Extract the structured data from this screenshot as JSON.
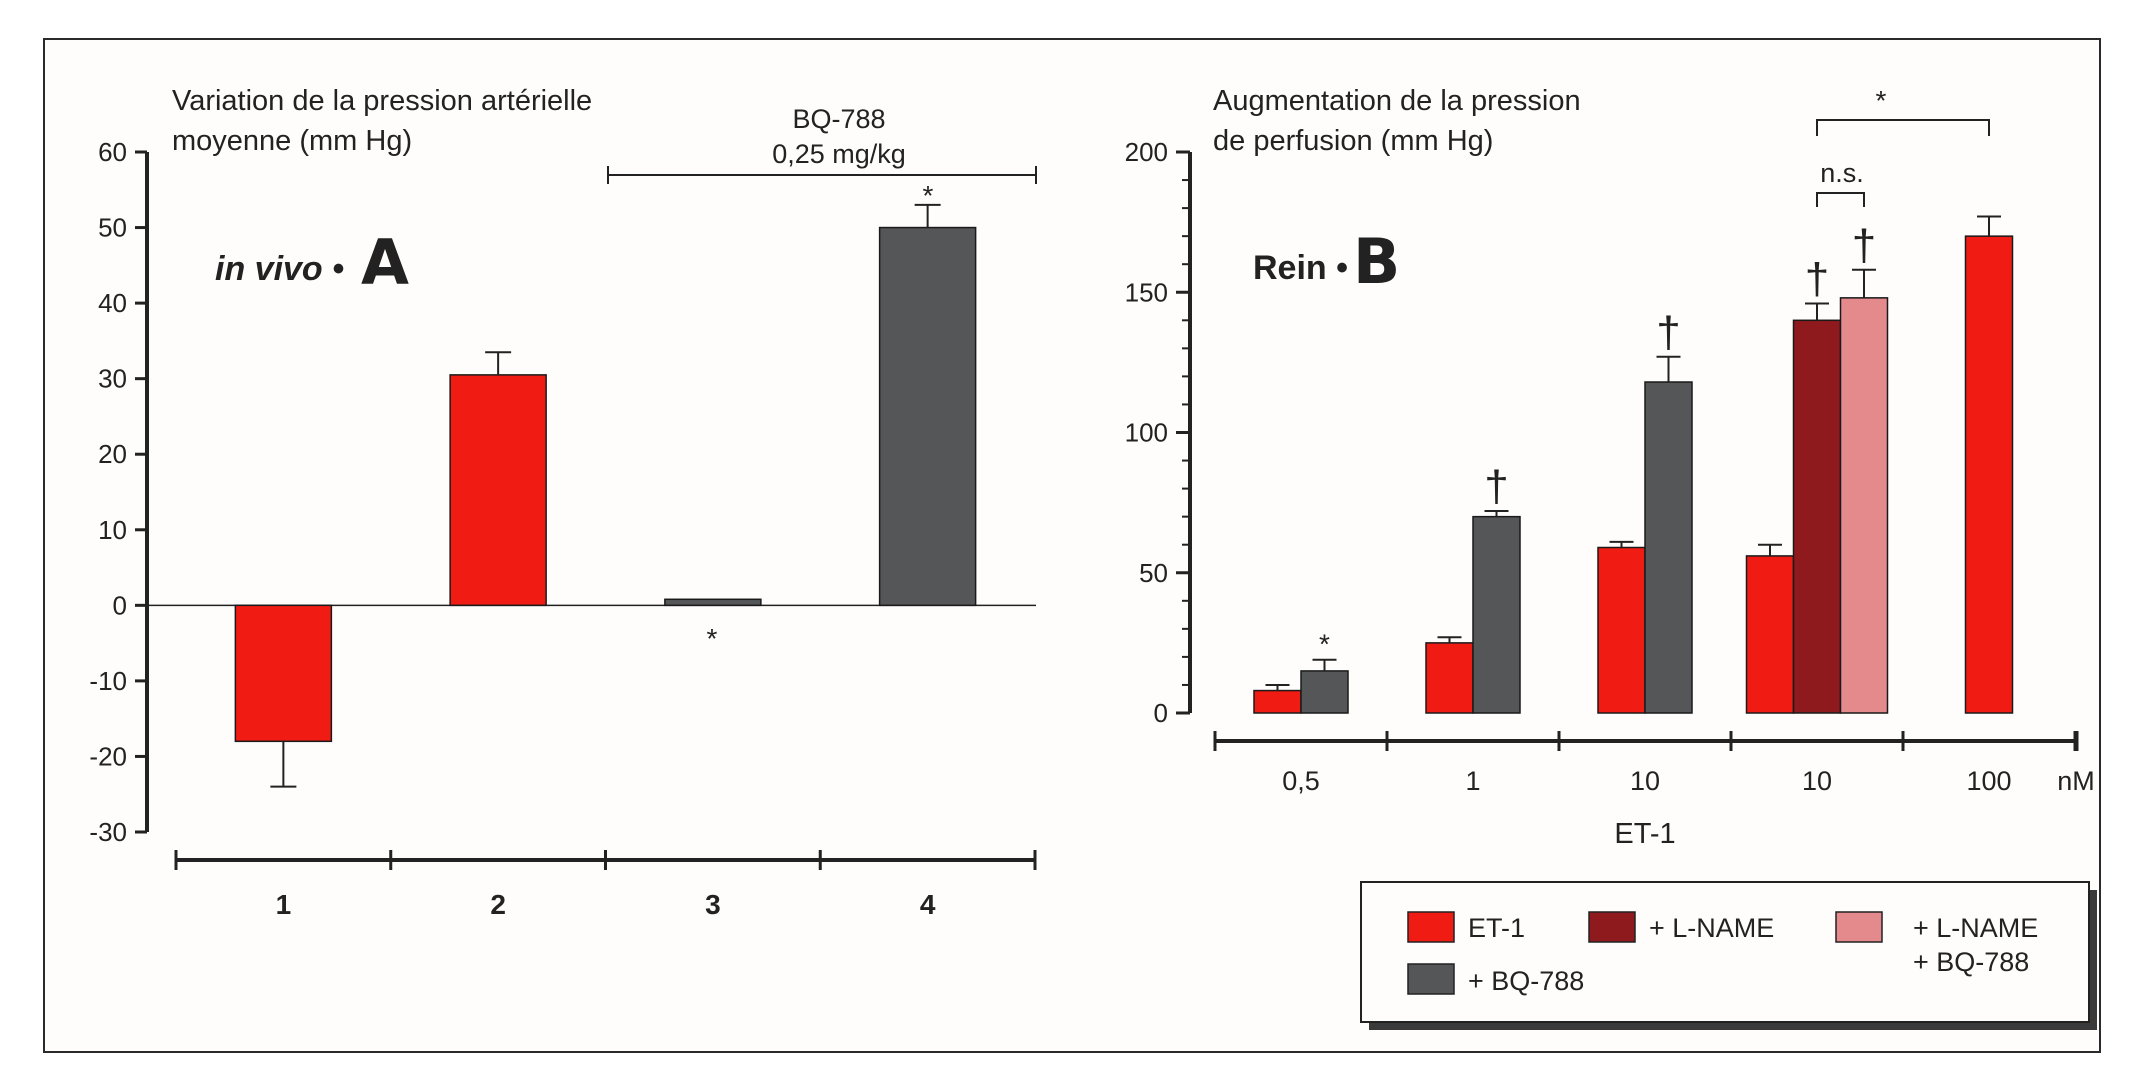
{
  "colors": {
    "red": "#f01c14",
    "dark_red": "#8e1a1e",
    "pink": "#e58a8c",
    "gray": "#555658",
    "ink": "#222222"
  },
  "chart_data": [
    {
      "type": "bar",
      "panel": "A",
      "title": "Variation de la pression artérielle moyenne (mm Hg)",
      "title_lines": [
        "Variation de la pression artérielle",
        "moyenne (mm Hg)"
      ],
      "panel_label_italic": "in vivo •",
      "panel_letter": "A",
      "ylim": [
        -30,
        60
      ],
      "yticks": [
        "60",
        "50",
        "40",
        "30",
        "20",
        "10",
        "0",
        "-10",
        "-20",
        "-30"
      ],
      "ytick_values": [
        60,
        50,
        40,
        30,
        20,
        10,
        0,
        -10,
        -20,
        -30
      ],
      "categories": [
        "1",
        "2",
        "3",
        "4"
      ],
      "bars": [
        {
          "category": "1",
          "value": -18,
          "error": 6,
          "color": "red"
        },
        {
          "category": "2",
          "value": 30.5,
          "error": 3,
          "color": "red"
        },
        {
          "category": "3",
          "value": 0.8,
          "error": 0,
          "color": "gray"
        },
        {
          "category": "4",
          "value": 50,
          "error": 3,
          "color": "gray"
        }
      ],
      "annotations": {
        "bq_line1": "BQ-788",
        "bq_line2": "0,25 mg/kg",
        "star_bar3": "*",
        "star_bar4": "*"
      }
    },
    {
      "type": "bar",
      "panel": "B",
      "title": "Augmentation de la pression de perfusion (mm Hg)",
      "title_lines": [
        "Augmentation de la pression",
        "de perfusion (mm Hg)"
      ],
      "panel_label_bold": "Rein •",
      "panel_letter": "B",
      "ylim": [
        0,
        200
      ],
      "yticks": [
        "200",
        "150",
        "100",
        "50",
        "0"
      ],
      "ytick_values": [
        200,
        150,
        100,
        50,
        0
      ],
      "xlabel": "ET-1",
      "unit": "nM",
      "categories": [
        "0,5",
        "1",
        "10",
        "10",
        "100"
      ],
      "groups": [
        {
          "label": "0,5",
          "bars": [
            {
              "series": "ET-1",
              "value": 8,
              "error": 2
            },
            {
              "series": "+ BQ-788",
              "value": 15,
              "error": 4,
              "mark": "*"
            }
          ]
        },
        {
          "label": "1",
          "bars": [
            {
              "series": "ET-1",
              "value": 25,
              "error": 2
            },
            {
              "series": "+ BQ-788",
              "value": 70,
              "error": 2,
              "mark": "†"
            }
          ]
        },
        {
          "label": "10",
          "bars": [
            {
              "series": "ET-1",
              "value": 59,
              "error": 2
            },
            {
              "series": "+ BQ-788",
              "value": 118,
              "error": 9,
              "mark": "†"
            }
          ]
        },
        {
          "label": "10",
          "bars": [
            {
              "series": "ET-1",
              "value": 56,
              "error": 4
            },
            {
              "series": "+ L-NAME",
              "value": 140,
              "error": 6,
              "mark": "†"
            },
            {
              "series": "+ L-NAME + BQ-788",
              "value": 148,
              "error": 10,
              "mark": "†"
            }
          ]
        },
        {
          "label": "100",
          "bars": [
            {
              "series": "ET-1",
              "value": 170,
              "error": 7
            }
          ]
        }
      ],
      "annotations": {
        "ns": "n.s.",
        "star_top": "*"
      },
      "legend": [
        {
          "series": "ET-1",
          "label_lines": [
            "ET-1"
          ],
          "color": "red"
        },
        {
          "series": "+ L-NAME",
          "label_lines": [
            "+ L-NAME"
          ],
          "color": "dark_red"
        },
        {
          "series": "+ L-NAME + BQ-788",
          "label_lines": [
            "+ L-NAME",
            "+ BQ-788"
          ],
          "color": "pink"
        },
        {
          "series": "+ BQ-788",
          "label_lines": [
            "+ BQ-788"
          ],
          "color": "gray"
        }
      ]
    }
  ]
}
